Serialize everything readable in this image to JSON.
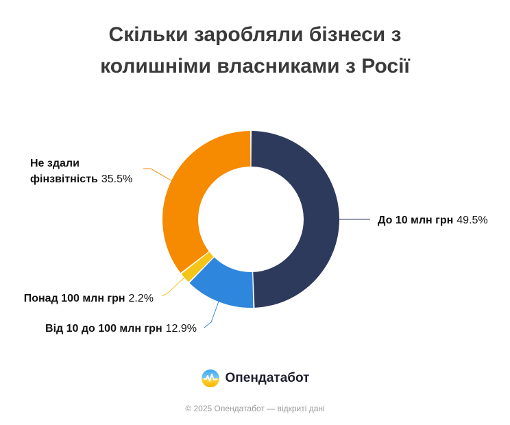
{
  "header": {
    "title_line1": "Скільки заробляли бізнеси з",
    "title_line2": "колишніми власниками з Росії"
  },
  "chart_data": {
    "type": "pie",
    "donut": true,
    "slices": [
      {
        "label": "До 10 млн грн",
        "value": 49.5,
        "value_text": "49.5%",
        "color": "#2d3a5c"
      },
      {
        "label": "Від 10 до 100 млн грн",
        "value": 12.9,
        "value_text": "12.9%",
        "color": "#2f86dd"
      },
      {
        "label": "Понад 100 млн грн",
        "value": 2.2,
        "value_text": "2.2%",
        "color": "#f5c518"
      },
      {
        "label_line1": "Не здали",
        "label_line2": "фінзвітність",
        "value": 35.5,
        "value_text": "35.5%",
        "color": "#f68a00"
      }
    ]
  },
  "brand": {
    "name": "Опендатабот",
    "logo_icon": "opendatabot-logo-icon"
  },
  "footer": {
    "text": "© 2025 Опендатабот — відкриті дані"
  }
}
